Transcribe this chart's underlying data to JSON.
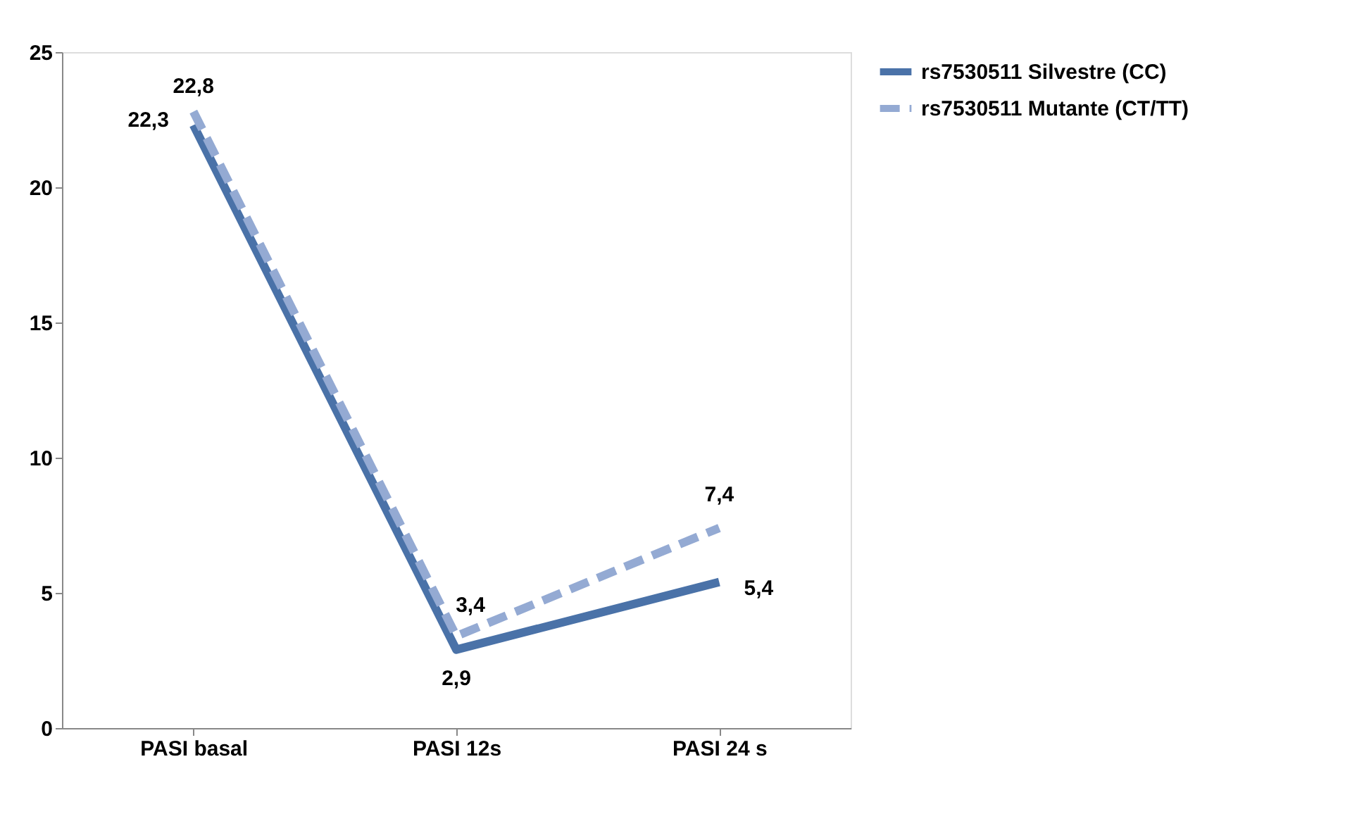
{
  "chart_data": {
    "type": "line",
    "categories": [
      "PASI basal",
      "PASI 12s",
      "PASI 24 s"
    ],
    "series": [
      {
        "name": "rs7530511 Silvestre (CC)",
        "color": "#4a72a8",
        "line_style": "solid",
        "values": [
          22.3,
          2.9,
          5.4
        ],
        "value_labels": [
          "22,3",
          "2,9",
          "5,4"
        ]
      },
      {
        "name": "rs7530511 Mutante (CT/TT)",
        "color": "#94aad3",
        "line_style": "dashed",
        "values": [
          22.8,
          3.4,
          7.4
        ],
        "value_labels": [
          "22,8",
          "3,4",
          "7,4"
        ]
      }
    ],
    "ylim": [
      0,
      25
    ],
    "yticks": [
      0,
      5,
      10,
      15,
      20,
      25
    ],
    "grid": false,
    "legend": "right",
    "marker": "none"
  }
}
